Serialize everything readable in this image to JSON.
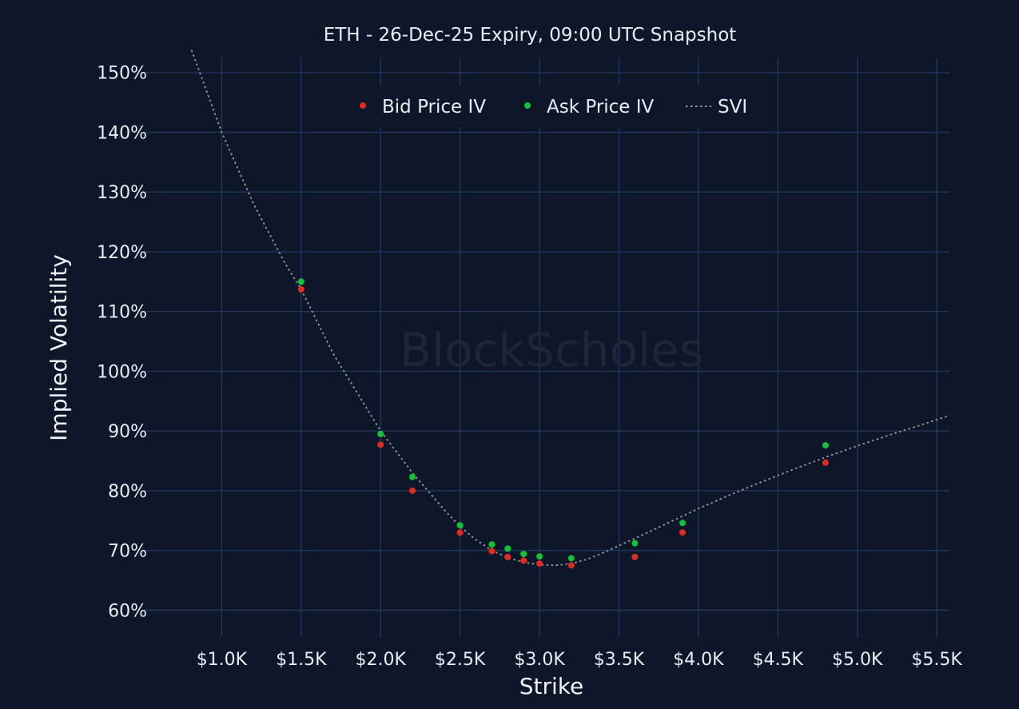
{
  "chart_data": {
    "type": "scatter",
    "title": "ETH - 26-Dec-25 Expiry, 09:00 UTC Snapshot",
    "xlabel": "Strike",
    "ylabel": "Implied Volatility",
    "watermark": "BlockScholes",
    "xlim": [
      500,
      5580
    ],
    "ylim": [
      55.5,
      152.5
    ],
    "x_ticks": [
      1000,
      1500,
      2000,
      2500,
      3000,
      3500,
      4000,
      4500,
      5000,
      5500
    ],
    "x_tick_labels": [
      "$1.0K",
      "$1.5K",
      "$2.0K",
      "$2.5K",
      "$3.0K",
      "$3.5K",
      "$4.0K",
      "$4.5K",
      "$5.0K",
      "$5.5K"
    ],
    "y_ticks": [
      60,
      70,
      80,
      90,
      100,
      110,
      120,
      130,
      140,
      150
    ],
    "y_tick_labels": [
      "60%",
      "70%",
      "80%",
      "90%",
      "100%",
      "110%",
      "120%",
      "130%",
      "140%",
      "150%"
    ],
    "grid": true,
    "legend_position": "top",
    "series": [
      {
        "name": "Bid Price IV",
        "kind": "markers",
        "color": "#e02b1f",
        "points": [
          [
            1500,
            113.7
          ],
          [
            2000,
            87.7
          ],
          [
            2200,
            80.0
          ],
          [
            2500,
            73.0
          ],
          [
            2700,
            69.9
          ],
          [
            2800,
            68.9
          ],
          [
            2900,
            68.3
          ],
          [
            3000,
            67.8
          ],
          [
            3200,
            67.5
          ],
          [
            3600,
            68.9
          ],
          [
            3900,
            73.0
          ],
          [
            4800,
            84.7
          ]
        ]
      },
      {
        "name": "Ask Price IV",
        "kind": "markers",
        "color": "#10c43a",
        "points": [
          [
            1500,
            115.0
          ],
          [
            2000,
            89.5
          ],
          [
            2200,
            82.3
          ],
          [
            2500,
            74.2
          ],
          [
            2700,
            71.0
          ],
          [
            2800,
            70.3
          ],
          [
            2900,
            69.4
          ],
          [
            3000,
            69.0
          ],
          [
            3200,
            68.7
          ],
          [
            3600,
            71.2
          ],
          [
            3900,
            74.6
          ],
          [
            4800,
            87.6
          ]
        ]
      },
      {
        "name": "SVI",
        "kind": "dotted-line",
        "color": "#9a9a9a",
        "points": [
          [
            800,
            154.5
          ],
          [
            1000,
            140.0
          ],
          [
            1200,
            128.0
          ],
          [
            1400,
            118.0
          ],
          [
            1500,
            113.7
          ],
          [
            1700,
            103.0
          ],
          [
            2000,
            90.0
          ],
          [
            2200,
            83.0
          ],
          [
            2400,
            76.8
          ],
          [
            2500,
            74.0
          ],
          [
            2600,
            71.8
          ],
          [
            2700,
            70.0
          ],
          [
            2800,
            68.8
          ],
          [
            2900,
            68.0
          ],
          [
            3000,
            67.6
          ],
          [
            3100,
            67.5
          ],
          [
            3200,
            67.8
          ],
          [
            3300,
            68.5
          ],
          [
            3400,
            69.6
          ],
          [
            3500,
            70.8
          ],
          [
            3600,
            72.0
          ],
          [
            3800,
            74.5
          ],
          [
            4000,
            77.0
          ],
          [
            4200,
            79.3
          ],
          [
            4400,
            81.5
          ],
          [
            4600,
            83.6
          ],
          [
            4800,
            85.6
          ],
          [
            5000,
            87.5
          ],
          [
            5200,
            89.3
          ],
          [
            5400,
            91.0
          ],
          [
            5580,
            92.6
          ]
        ]
      }
    ]
  }
}
